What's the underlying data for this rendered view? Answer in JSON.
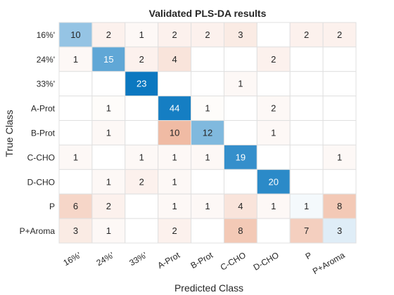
{
  "chart_data": {
    "type": "heatmap",
    "title": "Validated PLS-DA results",
    "xlabel": "Predicted Class",
    "ylabel": "True Class",
    "rows": [
      "16%'",
      "24%'",
      "33%'",
      "A-Prot",
      "B-Prot",
      "C-CHO",
      "D-CHO",
      "P",
      "P+Aroma"
    ],
    "cols": [
      "16%'",
      "24%'",
      "33%'",
      "A-Prot",
      "B-Prot",
      "C-CHO",
      "D-CHO",
      "P",
      "P+Aroma"
    ],
    "values": [
      [
        10,
        2,
        1,
        2,
        2,
        3,
        null,
        2,
        2
      ],
      [
        1,
        15,
        2,
        4,
        null,
        null,
        2,
        null,
        null
      ],
      [
        null,
        null,
        23,
        null,
        null,
        1,
        null,
        null,
        null
      ],
      [
        null,
        1,
        null,
        44,
        1,
        null,
        2,
        null,
        null
      ],
      [
        null,
        1,
        null,
        10,
        12,
        null,
        1,
        null,
        null
      ],
      [
        1,
        null,
        1,
        1,
        1,
        19,
        null,
        null,
        1
      ],
      [
        null,
        1,
        2,
        1,
        null,
        null,
        20,
        null,
        null
      ],
      [
        6,
        2,
        null,
        1,
        1,
        4,
        1,
        1,
        8
      ],
      [
        3,
        1,
        null,
        2,
        null,
        8,
        null,
        7,
        3
      ]
    ],
    "colors": {
      "diagonal": "#0072bd",
      "off_diagonal": "#d95319",
      "grid": "#e0e0e0",
      "text": "#262626",
      "axis_text": "#404040"
    }
  }
}
